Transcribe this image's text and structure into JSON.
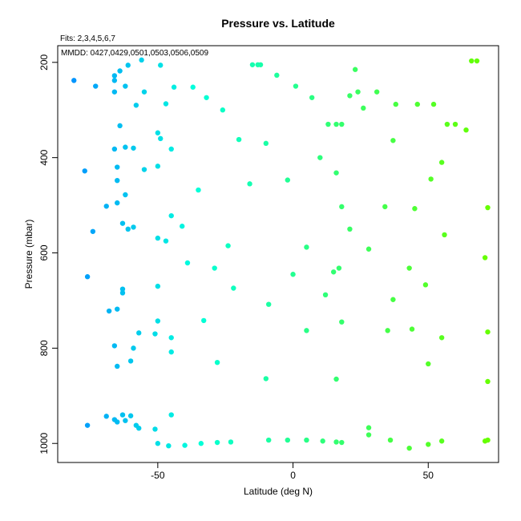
{
  "chart_data": {
    "type": "scatter",
    "title": "Pressure vs. Latitude",
    "subtitle": "Fits: 2,3,4,5,6,7",
    "annotation": "MMDD: 0427,0429,0501,0503,0506,0509",
    "xlabel": "Latitude (deg N)",
    "ylabel": "Pressure (mbar)",
    "xlim": [
      -87,
      76
    ],
    "ylim": [
      1040,
      165
    ],
    "y_inverted": true,
    "x_ticks": [
      -50,
      0,
      50
    ],
    "y_ticks": [
      200,
      400,
      600,
      800,
      1000
    ],
    "grid": false,
    "legend": "none",
    "color_scale": {
      "low": "#0093ff",
      "high": "#66ff00",
      "basis": "latitude"
    },
    "points": [
      {
        "x": -81,
        "y": 238
      },
      {
        "x": -73,
        "y": 250
      },
      {
        "x": -66,
        "y": 228
      },
      {
        "x": -66,
        "y": 238
      },
      {
        "x": -66,
        "y": 262
      },
      {
        "x": -64,
        "y": 218
      },
      {
        "x": -61,
        "y": 206
      },
      {
        "x": -56,
        "y": 195
      },
      {
        "x": -55,
        "y": 262
      },
      {
        "x": -58,
        "y": 290
      },
      {
        "x": -62,
        "y": 250
      },
      {
        "x": -64,
        "y": 333
      },
      {
        "x": -66,
        "y": 382
      },
      {
        "x": -62,
        "y": 378
      },
      {
        "x": -59,
        "y": 380
      },
      {
        "x": -77,
        "y": 428
      },
      {
        "x": -65,
        "y": 420
      },
      {
        "x": -65,
        "y": 448
      },
      {
        "x": -55,
        "y": 425
      },
      {
        "x": -62,
        "y": 478
      },
      {
        "x": -69,
        "y": 502
      },
      {
        "x": -65,
        "y": 495
      },
      {
        "x": -74,
        "y": 555
      },
      {
        "x": -63,
        "y": 538
      },
      {
        "x": -61,
        "y": 550
      },
      {
        "x": -59,
        "y": 546
      },
      {
        "x": -76,
        "y": 650
      },
      {
        "x": -63,
        "y": 676
      },
      {
        "x": -63,
        "y": 684
      },
      {
        "x": -68,
        "y": 722
      },
      {
        "x": -65,
        "y": 718
      },
      {
        "x": -57,
        "y": 768
      },
      {
        "x": -66,
        "y": 795
      },
      {
        "x": -59,
        "y": 800
      },
      {
        "x": -60,
        "y": 827
      },
      {
        "x": -65,
        "y": 838
      },
      {
        "x": -76,
        "y": 962
      },
      {
        "x": -69,
        "y": 943
      },
      {
        "x": -66,
        "y": 950
      },
      {
        "x": -65,
        "y": 955
      },
      {
        "x": -63,
        "y": 940
      },
      {
        "x": -62,
        "y": 952
      },
      {
        "x": -60,
        "y": 942
      },
      {
        "x": -58,
        "y": 962
      },
      {
        "x": -57,
        "y": 968
      },
      {
        "x": -49,
        "y": 206
      },
      {
        "x": -44,
        "y": 252
      },
      {
        "x": -47,
        "y": 287
      },
      {
        "x": -37,
        "y": 252
      },
      {
        "x": -32,
        "y": 274
      },
      {
        "x": -26,
        "y": 300
      },
      {
        "x": -50,
        "y": 348
      },
      {
        "x": -49,
        "y": 360
      },
      {
        "x": -45,
        "y": 382
      },
      {
        "x": -20,
        "y": 362
      },
      {
        "x": -50,
        "y": 418
      },
      {
        "x": -35,
        "y": 468
      },
      {
        "x": -45,
        "y": 522
      },
      {
        "x": -41,
        "y": 544
      },
      {
        "x": -47,
        "y": 575
      },
      {
        "x": -50,
        "y": 569
      },
      {
        "x": -24,
        "y": 585
      },
      {
        "x": -39,
        "y": 621
      },
      {
        "x": -29,
        "y": 632
      },
      {
        "x": -50,
        "y": 670
      },
      {
        "x": -22,
        "y": 674
      },
      {
        "x": -50,
        "y": 743
      },
      {
        "x": -33,
        "y": 742
      },
      {
        "x": -51,
        "y": 770
      },
      {
        "x": -45,
        "y": 778
      },
      {
        "x": -45,
        "y": 808
      },
      {
        "x": -28,
        "y": 830
      },
      {
        "x": -45,
        "y": 940
      },
      {
        "x": -51,
        "y": 970
      },
      {
        "x": -50,
        "y": 1000
      },
      {
        "x": -46,
        "y": 1005
      },
      {
        "x": -40,
        "y": 1004
      },
      {
        "x": -34,
        "y": 1000
      },
      {
        "x": -28,
        "y": 998
      },
      {
        "x": -23,
        "y": 997
      },
      {
        "x": -15,
        "y": 205
      },
      {
        "x": -13,
        "y": 205
      },
      {
        "x": -12,
        "y": 205
      },
      {
        "x": -6,
        "y": 227
      },
      {
        "x": 1,
        "y": 250
      },
      {
        "x": 7,
        "y": 274
      },
      {
        "x": 21,
        "y": 270
      },
      {
        "x": 23,
        "y": 215
      },
      {
        "x": 24,
        "y": 262
      },
      {
        "x": 26,
        "y": 296
      },
      {
        "x": 31,
        "y": 262
      },
      {
        "x": 38,
        "y": 288
      },
      {
        "x": 46,
        "y": 288
      },
      {
        "x": 52,
        "y": 288
      },
      {
        "x": 13,
        "y": 330
      },
      {
        "x": 16,
        "y": 330
      },
      {
        "x": 18,
        "y": 330
      },
      {
        "x": -10,
        "y": 370
      },
      {
        "x": 37,
        "y": 364
      },
      {
        "x": 10,
        "y": 400
      },
      {
        "x": 16,
        "y": 432
      },
      {
        "x": 57,
        "y": 330
      },
      {
        "x": 60,
        "y": 330
      },
      {
        "x": 64,
        "y": 342
      },
      {
        "x": 66,
        "y": 197
      },
      {
        "x": 68,
        "y": 197
      },
      {
        "x": 55,
        "y": 410
      },
      {
        "x": -16,
        "y": 455
      },
      {
        "x": -2,
        "y": 447
      },
      {
        "x": 51,
        "y": 445
      },
      {
        "x": 18,
        "y": 503
      },
      {
        "x": 34,
        "y": 503
      },
      {
        "x": 45,
        "y": 507
      },
      {
        "x": 72,
        "y": 505
      },
      {
        "x": 21,
        "y": 550
      },
      {
        "x": 56,
        "y": 562
      },
      {
        "x": 5,
        "y": 588
      },
      {
        "x": 28,
        "y": 592
      },
      {
        "x": 71,
        "y": 610
      },
      {
        "x": 0,
        "y": 645
      },
      {
        "x": 15,
        "y": 640
      },
      {
        "x": 17,
        "y": 632
      },
      {
        "x": 43,
        "y": 632
      },
      {
        "x": 49,
        "y": 667
      },
      {
        "x": 12,
        "y": 688
      },
      {
        "x": 37,
        "y": 698
      },
      {
        "x": -9,
        "y": 708
      },
      {
        "x": 18,
        "y": 745
      },
      {
        "x": 5,
        "y": 763
      },
      {
        "x": 35,
        "y": 763
      },
      {
        "x": 44,
        "y": 760
      },
      {
        "x": 55,
        "y": 778
      },
      {
        "x": 72,
        "y": 766
      },
      {
        "x": 50,
        "y": 833
      },
      {
        "x": -10,
        "y": 864
      },
      {
        "x": 16,
        "y": 865
      },
      {
        "x": 72,
        "y": 870
      },
      {
        "x": 28,
        "y": 967
      },
      {
        "x": 28,
        "y": 982
      },
      {
        "x": -9,
        "y": 993
      },
      {
        "x": -2,
        "y": 993
      },
      {
        "x": 5,
        "y": 993
      },
      {
        "x": 11,
        "y": 995
      },
      {
        "x": 16,
        "y": 997
      },
      {
        "x": 18,
        "y": 998
      },
      {
        "x": 36,
        "y": 993
      },
      {
        "x": 43,
        "y": 1010
      },
      {
        "x": 50,
        "y": 1002
      },
      {
        "x": 55,
        "y": 995
      },
      {
        "x": 71,
        "y": 995
      },
      {
        "x": 72,
        "y": 993
      }
    ]
  }
}
